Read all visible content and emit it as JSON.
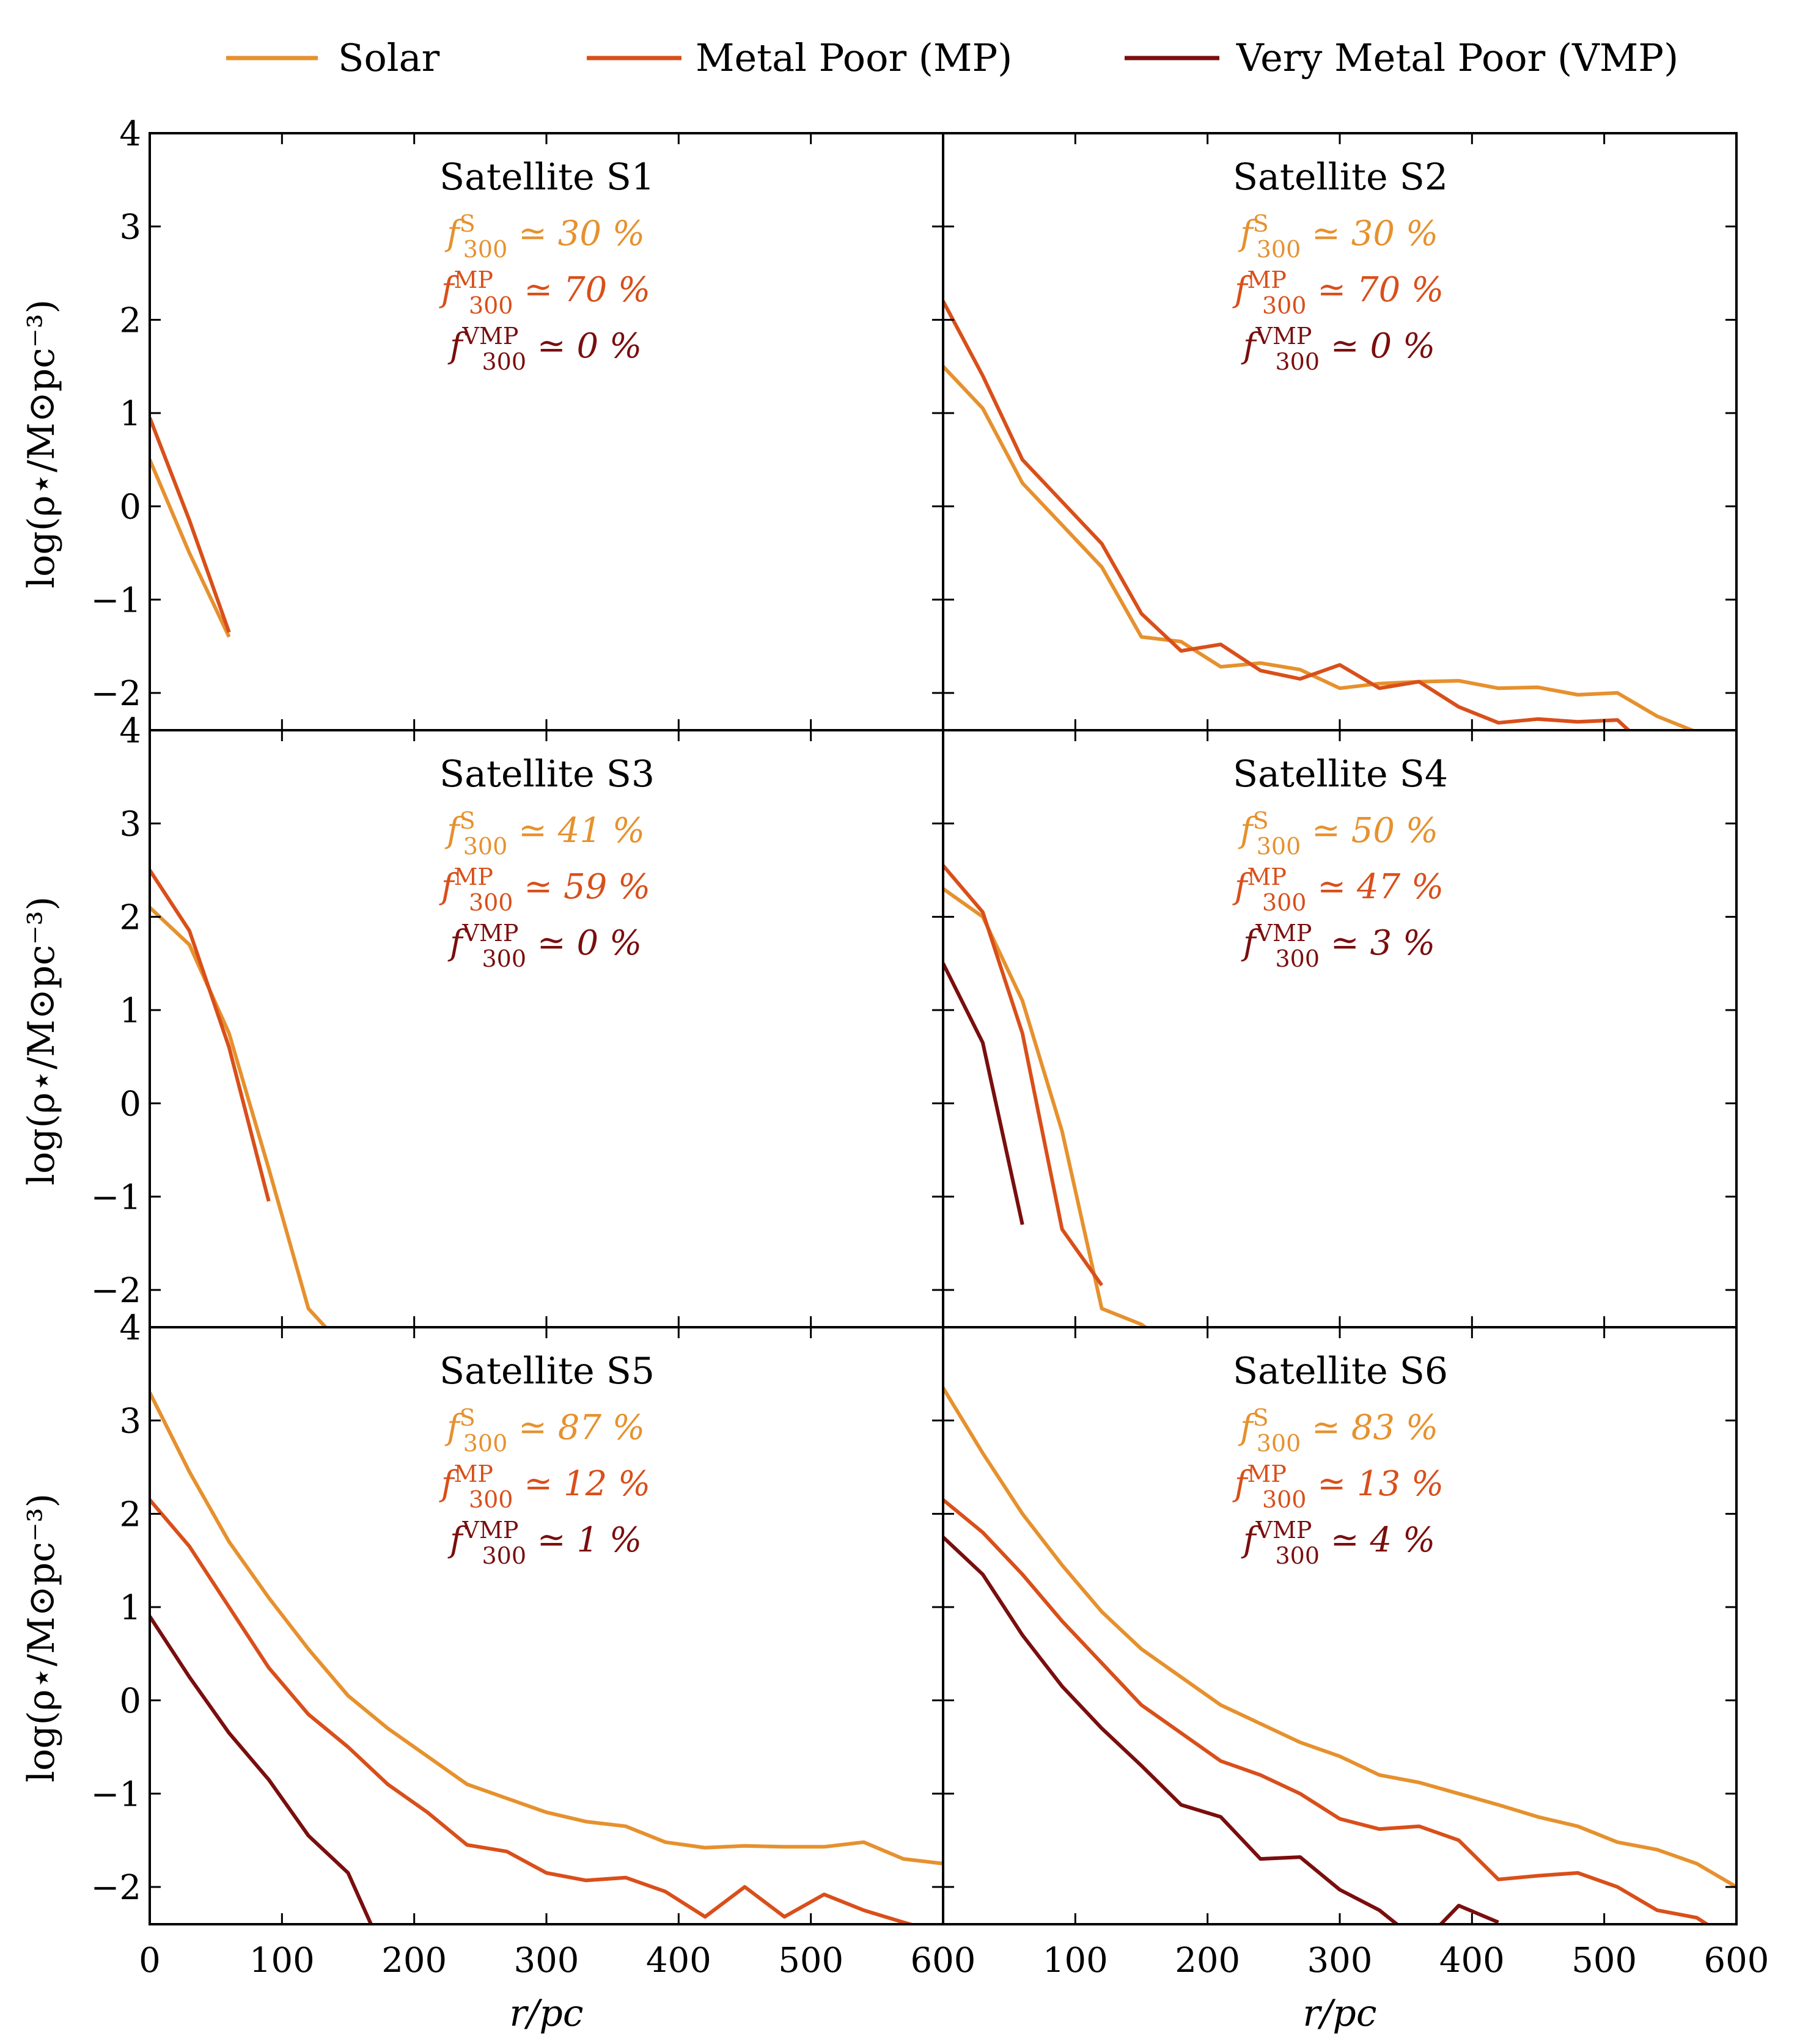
{
  "chart_data": {
    "type": "line",
    "layout": "3x2 grid of panels sharing axes",
    "xlabel": "r/pc",
    "ylabel": "log(ρ⋆/M⊙pc⁻³)",
    "xlim": [
      0,
      600
    ],
    "ylim": [
      -2.4,
      4
    ],
    "xticks": [
      0,
      100,
      200,
      300,
      400,
      500,
      600
    ],
    "yticks": [
      4,
      3,
      2,
      1,
      0,
      -1,
      -2
    ],
    "legend": [
      {
        "name": "Solar",
        "color": "#E6912E"
      },
      {
        "name": "Metal Poor (MP)",
        "color": "#D94F1A"
      },
      {
        "name": "Very Metal Poor (VMP)",
        "color": "#7A0E0E"
      }
    ],
    "panels": [
      {
        "title": "Satellite S1",
        "fractions": [
          {
            "sup": "S",
            "value": "≃ 30 %",
            "color": "#E6912E"
          },
          {
            "sup": "MP",
            "value": "≃ 70 %",
            "color": "#D94F1A"
          },
          {
            "sup": "VMP",
            "value": "≃ 0 %",
            "color": "#7A0E0E"
          }
        ],
        "series": [
          {
            "name": "Solar",
            "x": [
              0,
              30,
              60
            ],
            "y": [
              0.5,
              -0.5,
              -1.4
            ]
          },
          {
            "name": "Metal Poor (MP)",
            "x": [
              0,
              30,
              60
            ],
            "y": [
              0.95,
              -0.15,
              -1.35
            ]
          }
        ]
      },
      {
        "title": "Satellite S2",
        "fractions": [
          {
            "sup": "S",
            "value": "≃ 30 %",
            "color": "#E6912E"
          },
          {
            "sup": "MP",
            "value": "≃ 70 %",
            "color": "#D94F1A"
          },
          {
            "sup": "VMP",
            "value": "≃ 0 %",
            "color": "#7A0E0E"
          }
        ],
        "series": [
          {
            "name": "Solar",
            "x": [
              0,
              30,
              60,
              90,
              120,
              150,
              180,
              210,
              240,
              270,
              300,
              330,
              360,
              390,
              420,
              450,
              480,
              510,
              540,
              570
            ],
            "y": [
              1.5,
              1.05,
              0.25,
              -0.2,
              -0.65,
              -1.4,
              -1.45,
              -1.72,
              -1.68,
              -1.75,
              -1.95,
              -1.9,
              -1.88,
              -1.87,
              -1.95,
              -1.94,
              -2.02,
              -2.0,
              -2.25,
              -2.42
            ]
          },
          {
            "name": "Metal Poor (MP)",
            "x": [
              0,
              30,
              60,
              90,
              120,
              150,
              180,
              210,
              240,
              270,
              300,
              330,
              360,
              390,
              420,
              450,
              480,
              510,
              520
            ],
            "y": [
              2.2,
              1.4,
              0.5,
              0.05,
              -0.4,
              -1.15,
              -1.55,
              -1.48,
              -1.76,
              -1.85,
              -1.7,
              -1.95,
              -1.88,
              -2.15,
              -2.32,
              -2.28,
              -2.31,
              -2.29,
              -2.42
            ]
          }
        ]
      },
      {
        "title": "Satellite S3",
        "fractions": [
          {
            "sup": "S",
            "value": "≃ 41 %",
            "color": "#E6912E"
          },
          {
            "sup": "MP",
            "value": "≃ 59 %",
            "color": "#D94F1A"
          },
          {
            "sup": "VMP",
            "value": "≃ 0 %",
            "color": "#7A0E0E"
          }
        ],
        "series": [
          {
            "name": "Solar",
            "x": [
              0,
              30,
              60,
              90,
              120,
              133
            ],
            "y": [
              2.1,
              1.7,
              0.75,
              -0.7,
              -2.2,
              -2.4
            ]
          },
          {
            "name": "Metal Poor (MP)",
            "x": [
              0,
              30,
              60,
              90
            ],
            "y": [
              2.5,
              1.85,
              0.6,
              -1.05
            ]
          }
        ]
      },
      {
        "title": "Satellite S4",
        "fractions": [
          {
            "sup": "S",
            "value": "≃ 50 %",
            "color": "#E6912E"
          },
          {
            "sup": "MP",
            "value": "≃ 47 %",
            "color": "#D94F1A"
          },
          {
            "sup": "VMP",
            "value": "≃ 3 %",
            "color": "#7A0E0E"
          }
        ],
        "series": [
          {
            "name": "Solar",
            "x": [
              0,
              30,
              60,
              90,
              120,
              150,
              155
            ],
            "y": [
              2.3,
              2.0,
              1.1,
              -0.3,
              -2.2,
              -2.37,
              -2.42
            ]
          },
          {
            "name": "Metal Poor (MP)",
            "x": [
              0,
              30,
              60,
              90,
              120
            ],
            "y": [
              2.55,
              2.05,
              0.75,
              -1.35,
              -1.95
            ]
          },
          {
            "name": "Very Metal Poor (VMP)",
            "x": [
              0,
              30,
              60
            ],
            "y": [
              1.5,
              0.65,
              -1.3
            ]
          }
        ]
      },
      {
        "title": "Satellite S5",
        "fractions": [
          {
            "sup": "S",
            "value": "≃ 87 %",
            "color": "#E6912E"
          },
          {
            "sup": "MP",
            "value": "≃ 12 %",
            "color": "#D94F1A"
          },
          {
            "sup": "VMP",
            "value": "≃ 1 %",
            "color": "#7A0E0E"
          }
        ],
        "series": [
          {
            "name": "Solar",
            "x": [
              0,
              30,
              60,
              90,
              120,
              150,
              180,
              210,
              240,
              270,
              300,
              330,
              360,
              390,
              420,
              450,
              480,
              510,
              540,
              570,
              600
            ],
            "y": [
              3.3,
              2.45,
              1.7,
              1.1,
              0.55,
              0.05,
              -0.3,
              -0.6,
              -0.9,
              -1.05,
              -1.2,
              -1.3,
              -1.35,
              -1.52,
              -1.58,
              -1.56,
              -1.57,
              -1.57,
              -1.52,
              -1.7,
              -1.75
            ]
          },
          {
            "name": "Metal Poor (MP)",
            "x": [
              0,
              30,
              60,
              90,
              120,
              150,
              180,
              210,
              240,
              270,
              300,
              330,
              360,
              390,
              420,
              450,
              480,
              510,
              540,
              570,
              580
            ],
            "y": [
              2.15,
              1.65,
              1.0,
              0.35,
              -0.15,
              -0.5,
              -0.9,
              -1.2,
              -1.55,
              -1.62,
              -1.85,
              -1.93,
              -1.9,
              -2.05,
              -2.32,
              -2.0,
              -2.32,
              -2.08,
              -2.25,
              -2.38,
              -2.42
            ]
          },
          {
            "name": "Very Metal Poor (VMP)",
            "x": [
              0,
              30,
              60,
              90,
              120,
              150,
              168
            ],
            "y": [
              0.9,
              0.25,
              -0.35,
              -0.85,
              -1.45,
              -1.85,
              -2.42
            ]
          }
        ]
      },
      {
        "title": "Satellite S6",
        "fractions": [
          {
            "sup": "S",
            "value": "≃ 83 %",
            "color": "#E6912E"
          },
          {
            "sup": "MP",
            "value": "≃ 13 %",
            "color": "#D94F1A"
          },
          {
            "sup": "VMP",
            "value": "≃ 4 %",
            "color": "#7A0E0E"
          }
        ],
        "series": [
          {
            "name": "Solar",
            "x": [
              0,
              30,
              60,
              90,
              120,
              150,
              180,
              210,
              240,
              270,
              300,
              330,
              360,
              390,
              420,
              450,
              480,
              510,
              540,
              570,
              600
            ],
            "y": [
              3.35,
              2.65,
              2.0,
              1.45,
              0.95,
              0.55,
              0.25,
              -0.05,
              -0.25,
              -0.45,
              -0.6,
              -0.8,
              -0.88,
              -1.0,
              -1.12,
              -1.25,
              -1.35,
              -1.52,
              -1.6,
              -1.75,
              -2.0
            ]
          },
          {
            "name": "Metal Poor (MP)",
            "x": [
              0,
              30,
              60,
              90,
              120,
              150,
              180,
              210,
              240,
              270,
              300,
              330,
              360,
              390,
              420,
              450,
              480,
              510,
              540,
              570,
              580
            ],
            "y": [
              2.15,
              1.8,
              1.35,
              0.85,
              0.4,
              -0.05,
              -0.35,
              -0.65,
              -0.8,
              -1.0,
              -1.27,
              -1.38,
              -1.35,
              -1.5,
              -1.92,
              -1.88,
              -1.85,
              -2.0,
              -2.25,
              -2.33,
              -2.42
            ]
          },
          {
            "name": "Very Metal Poor (VMP)",
            "x": [
              0,
              30,
              60,
              90,
              120,
              150,
              180,
              210,
              240,
              270,
              300,
              330,
              345
            ],
            "y": [
              1.75,
              1.35,
              0.7,
              0.15,
              -0.3,
              -0.7,
              -1.12,
              -1.25,
              -1.7,
              -1.68,
              -2.03,
              -2.25,
              -2.42
            ]
          },
          {
            "name": "Very Metal Poor (VMP)",
            "x": [
              375,
              390,
              420
            ],
            "y": [
              -2.42,
              -2.2,
              -2.38
            ]
          }
        ]
      }
    ]
  }
}
